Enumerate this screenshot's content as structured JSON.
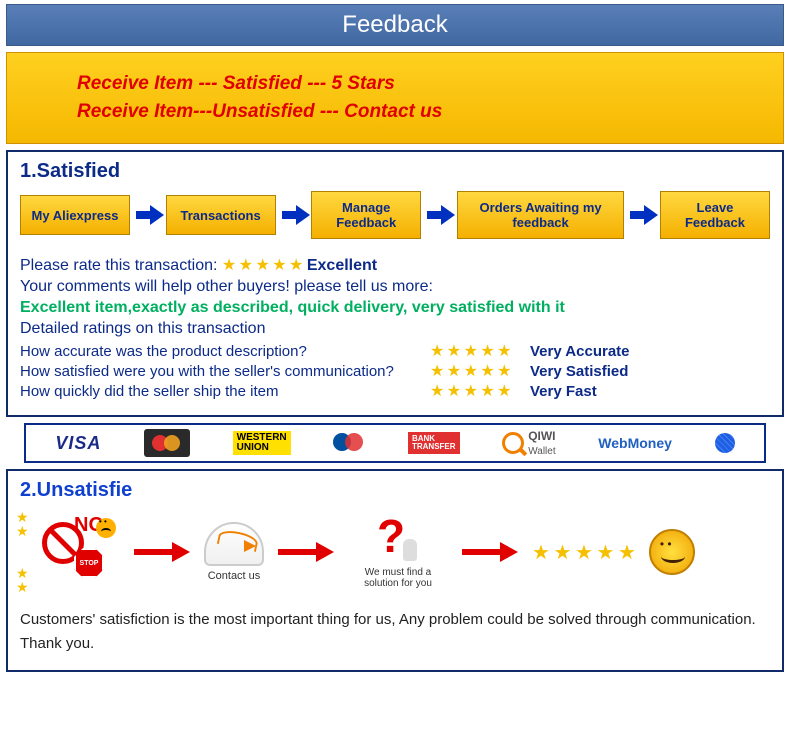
{
  "header": {
    "title": "Feedback"
  },
  "banner": {
    "line1": "Receive  Item --- Satisfied  --- 5 Stars",
    "line2": "Receive  Item---Unsatisfied --- Contact us"
  },
  "satisfied": {
    "title": "1.Satisfied",
    "flow": [
      "My Aliexpress",
      "Transactions",
      "Manage Feedback",
      "Orders Awaiting my feedback",
      "Leave Feedback"
    ],
    "rate_line": "Please rate this transaction:",
    "rate_stars": "★ ★ ★ ★ ★",
    "rate_label": "Excellent",
    "comments_line": "Your comments will help other buyers! please tell us more:",
    "green_line": "Excellent item,exactly as described, quick delivery, very satisfied with it",
    "detailed": "Detailed ratings on this transaction",
    "q1": "How accurate was the product description?",
    "q2": "How satisfied were you with the seller's communication?",
    "q3": "How quickly did the seller ship the item",
    "row_stars": "★ ★ ★ ★ ★",
    "a1": "Very Accurate",
    "a2": "Very Satisfied",
    "a3": "Very Fast"
  },
  "payments": {
    "visa": "VISA",
    "wu_line1": "WESTERN",
    "wu_line2": "UNION",
    "bank_line1": "BANK",
    "bank_line2": "TRANSFER",
    "qiwi": "QIWI",
    "wallet": "Wallet",
    "webmoney": "WebMoney"
  },
  "unsatisfied": {
    "title": "2.Unsatisfie",
    "no": "NO",
    "stop": "STOP",
    "contact": "Contact us",
    "solution": "We must find a solution for you",
    "stars5": "★ ★ ★ ★ ★",
    "footer": "Customers' satisfiction is the most important thing for us, Any problem could be solved through communication. Thank you."
  },
  "colors": {
    "header_bg": "#4a70a8",
    "banner_bg": "#f9c400",
    "border": "#102a6a",
    "title": "#0c2a88",
    "green": "#00b060",
    "red": "#e00000",
    "star": "#f5c000",
    "blue_arrow": "#0030c0"
  }
}
